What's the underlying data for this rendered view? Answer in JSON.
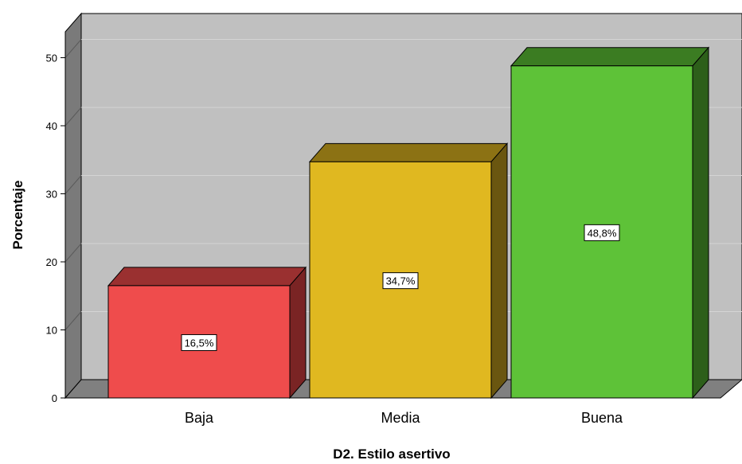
{
  "chart_data": {
    "type": "bar",
    "categories": [
      "Baja",
      "Media",
      "Buena"
    ],
    "values": [
      16.5,
      34.7,
      48.8
    ],
    "data_labels": [
      "16,5%",
      "34,7%",
      "48,8%"
    ],
    "title": "",
    "xlabel": "D2. Estilo asertivo",
    "ylabel": "Porcentaje",
    "ylim": [
      0,
      50
    ],
    "yticks": [
      0,
      10,
      20,
      30,
      40,
      50
    ],
    "grid": true,
    "style": "3d",
    "colors": {
      "bars": [
        "#ef4c4c",
        "#e0b820",
        "#5ec238"
      ],
      "bar_tops": [
        "#9a3030",
        "#8c7214",
        "#3b7c22"
      ],
      "bar_sides": [
        "#7a2424",
        "#6a5610",
        "#2d5f1a"
      ],
      "back_wall": "#c0c0c0",
      "side_wall": "#7a7a7a",
      "floor": "#808080",
      "gridline": "#d4d4d4"
    }
  }
}
